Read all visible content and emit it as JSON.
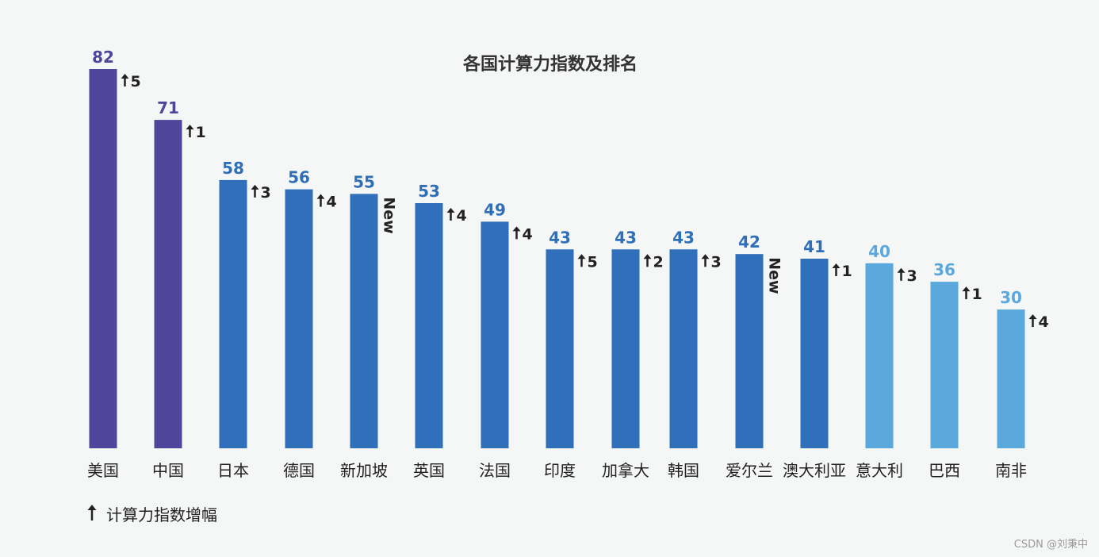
{
  "chart_data": {
    "type": "bar",
    "title": "各国计算力指数及排名",
    "xlabel": "",
    "ylabel": "",
    "ylim": [
      0,
      82
    ],
    "grid": false,
    "categories": [
      "美国",
      "中国",
      "日本",
      "德国",
      "新加坡",
      "英国",
      "法国",
      "印度",
      "加拿大",
      "韩国",
      "爱尔兰",
      "澳大利亚",
      "意大利",
      "巴西",
      "南非"
    ],
    "values": [
      82,
      71,
      58,
      56,
      55,
      53,
      49,
      43,
      43,
      43,
      42,
      41,
      40,
      36,
      30
    ],
    "rank_change": [
      "5",
      "1",
      "3",
      "4",
      "New",
      "4",
      "4",
      "5",
      "2",
      "3",
      "New",
      "1",
      "3",
      "1",
      "4"
    ],
    "tiers": [
      "top",
      "top",
      "mid",
      "mid",
      "mid",
      "mid",
      "mid",
      "mid",
      "mid",
      "mid",
      "mid",
      "mid",
      "low",
      "low",
      "low"
    ],
    "legend": "计算力指数增幅",
    "legend_position": "bottom-left",
    "colors": {
      "top": "#4f459b",
      "mid": "#3070ba",
      "low": "#5ba8dc",
      "top_label": "#4f459b",
      "mid_label": "#2f6fb8",
      "low_label": "#5ba8dc",
      "text": "#222222",
      "background": "#f5f6f6"
    }
  },
  "watermark": "CSDN @刘秉中",
  "icons": {
    "increase": "arrow-up-icon"
  }
}
